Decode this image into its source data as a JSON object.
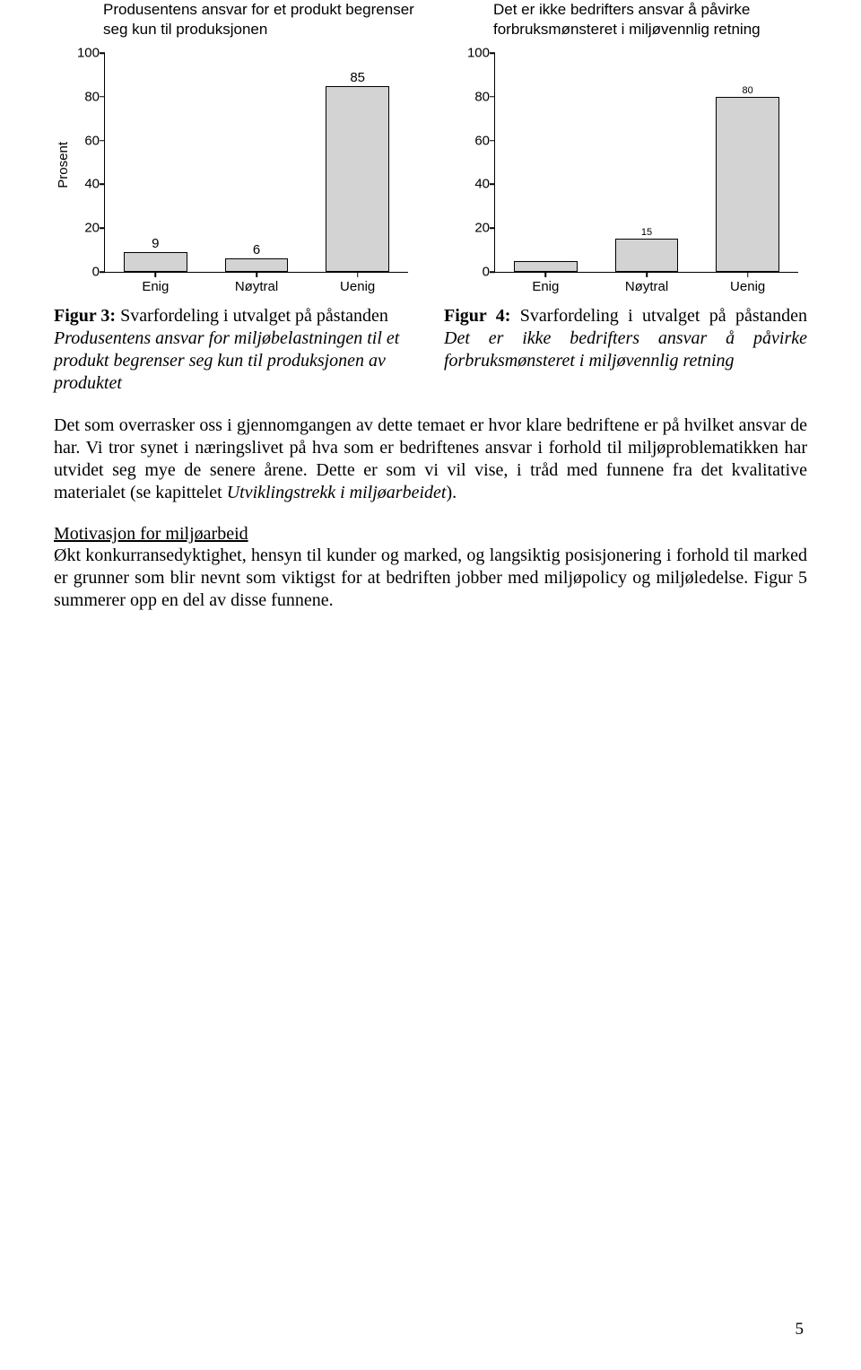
{
  "chart_left": {
    "type": "bar",
    "title": "Produsentens ansvar for et produkt begrenser seg kun til produksjonen",
    "ylabel": "Prosent",
    "ylim": [
      0,
      100
    ],
    "ytick_step": 20,
    "categories": [
      "Enig",
      "Nøytral",
      "Uenig"
    ],
    "values": [
      9,
      6,
      85
    ],
    "bar_labels": [
      "9",
      "6",
      "85"
    ],
    "bar_label_fontsize": [
      15,
      15,
      15
    ],
    "bar_color": "#d3d3d3",
    "bar_border": "#000000",
    "bar_width_pct": 21,
    "tick_fontsize": 15,
    "background": "#ffffff"
  },
  "chart_right": {
    "type": "bar",
    "title": "Det er ikke bedrifters ansvar å påvirke forbruksmønsteret i miljøvennlig retning",
    "ylim": [
      0,
      100
    ],
    "ytick_step": 20,
    "categories": [
      "Enig",
      "Nøytral",
      "Uenig"
    ],
    "values": [
      5,
      15,
      80
    ],
    "bar_labels": [
      "",
      "15",
      "80"
    ],
    "bar_label_fontsize": [
      11,
      11,
      11
    ],
    "bar_color": "#d3d3d3",
    "bar_border": "#000000",
    "bar_width_pct": 21,
    "tick_fontsize": 15,
    "background": "#ffffff"
  },
  "caption_left": {
    "lead": "Figur 3:",
    "plain1": " Svarfordeling i utvalget på påstanden ",
    "italic": "Produsentens ansvar for miljøbelastningen til et produkt begrenser seg kun til produksjonen av produktet"
  },
  "caption_right": {
    "lead": "Figur 4:",
    "plain1": " Svarfordeling i utvalget på påstanden ",
    "italic1": "Det er ikke bedrifters ansvar å påvirke forbruksmønsteret i ",
    "italic2": "miljøvennlig retning"
  },
  "para1": {
    "t1": "Det som overrasker oss i gjennomgangen av dette temaet er hvor klare bedriftene er på hvilket ansvar de har. Vi tror synet i næringslivet på hva som er bedriftenes ansvar i forhold til miljøproblematikken har utvidet seg mye de senere årene. Dette er som vi vil vise, i tråd med funnene fra det kvalitative materialet (se kapittelet ",
    "it": "Utviklingstrekk i miljøarbeidet",
    "t2": ")."
  },
  "section_title": "Motivasjon for miljøarbeid",
  "para2": "Økt konkurransedyktighet, hensyn til kunder og marked, og langsiktig posisjonering i forhold til marked er grunner som blir nevnt som viktigst for at bedriften jobber med miljøpolicy og miljøledelse. Figur 5 summerer opp en del av disse funnene.",
  "page_number": "5"
}
